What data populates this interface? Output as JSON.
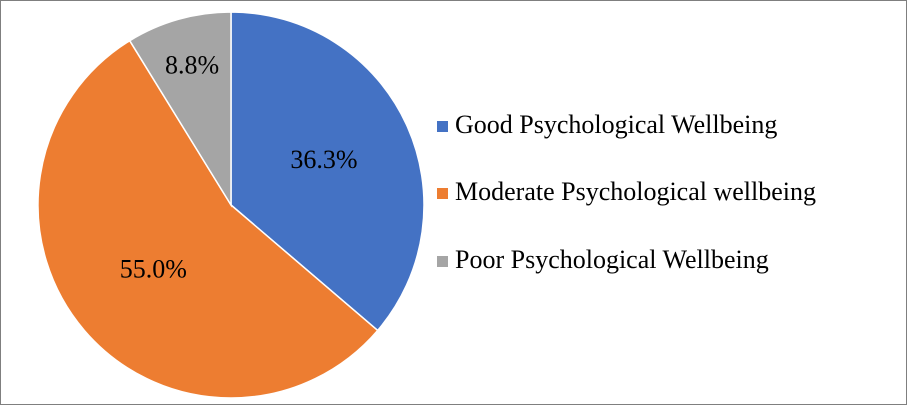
{
  "chart_data": {
    "type": "pie",
    "categories": [
      "Good Psychological Wellbeing",
      "Moderate Psychological wellbeing",
      "Poor Psychological Wellbeing"
    ],
    "values": [
      36.3,
      55.0,
      8.8
    ],
    "value_labels": [
      "36.3%",
      "55.0%",
      "8.8%"
    ],
    "colors": [
      "#4472c4",
      "#ed7d31",
      "#a5a5a5"
    ],
    "legend": "right"
  }
}
